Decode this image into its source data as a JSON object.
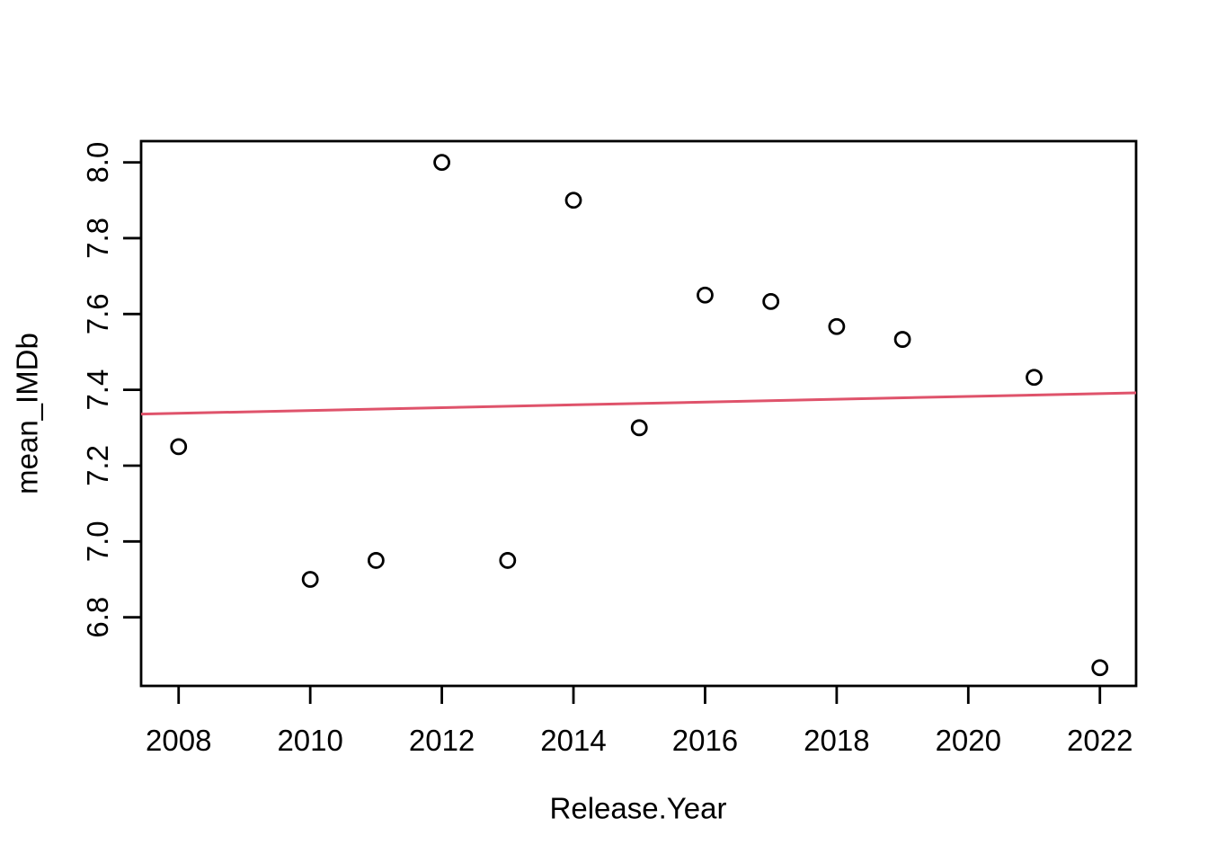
{
  "figure": {
    "background": "#ffffff",
    "text_color": "#000000"
  },
  "chart_data": {
    "type": "scatter",
    "title": "",
    "xlabel": "Release.Year",
    "ylabel": "mean_IMDb",
    "points": [
      {
        "x": 2008,
        "y": 7.25
      },
      {
        "x": 2010,
        "y": 6.9
      },
      {
        "x": 2011,
        "y": 6.95
      },
      {
        "x": 2012,
        "y": 8.0
      },
      {
        "x": 2013,
        "y": 6.95
      },
      {
        "x": 2014,
        "y": 7.9
      },
      {
        "x": 2015,
        "y": 7.3
      },
      {
        "x": 2016,
        "y": 7.65
      },
      {
        "x": 2017,
        "y": 7.633
      },
      {
        "x": 2018,
        "y": 7.567
      },
      {
        "x": 2019,
        "y": 7.533
      },
      {
        "x": 2021,
        "y": 7.433
      },
      {
        "x": 2022,
        "y": 6.667
      }
    ],
    "x_ticks": [
      2008,
      2010,
      2012,
      2014,
      2016,
      2018,
      2020,
      2022
    ],
    "y_ticks": [
      6.8,
      7.0,
      7.2,
      7.4,
      7.6,
      7.8,
      8.0
    ],
    "xlim": [
      2007.43,
      2022.55
    ],
    "ylim": [
      6.619,
      8.056
    ],
    "grid": false,
    "legend": null,
    "point_style": {
      "shape": "open-circle",
      "color": "#000000"
    },
    "regression_line": {
      "x1": 2007.43,
      "y1": 7.336,
      "x2": 2022.55,
      "y2": 7.392,
      "color": "#DF536B"
    }
  }
}
